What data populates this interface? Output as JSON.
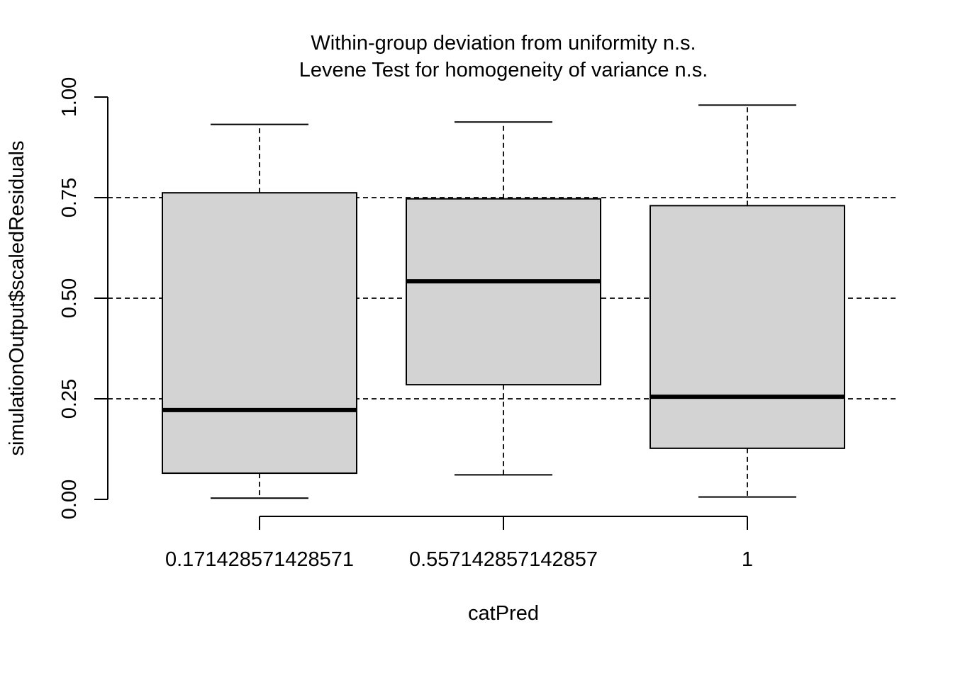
{
  "chart_data": {
    "type": "boxplot",
    "title_lines": [
      "Within-group deviation from uniformity n.s.",
      "Levene Test for homogeneity of variance n.s."
    ],
    "xlabel": "catPred",
    "ylabel": "simulationOutput$scaledResiduals",
    "ylim": [
      0,
      1
    ],
    "y_ticks": [
      "0.00",
      "0.25",
      "0.50",
      "0.75",
      "1.00"
    ],
    "reference_lines": [
      0.25,
      0.5,
      0.75
    ],
    "categories": [
      "0.171428571428571",
      "0.557142857142857",
      "1"
    ],
    "boxes": [
      {
        "min": 0.003,
        "q1": 0.065,
        "median": 0.222,
        "q3": 0.762,
        "max": 0.932
      },
      {
        "min": 0.061,
        "q1": 0.285,
        "median": 0.542,
        "q3": 0.747,
        "max": 0.938
      },
      {
        "min": 0.006,
        "q1": 0.127,
        "median": 0.255,
        "q3": 0.73,
        "max": 0.98
      }
    ],
    "box_fill": "#d3d3d3",
    "line_color": "#000000",
    "grid": false
  }
}
